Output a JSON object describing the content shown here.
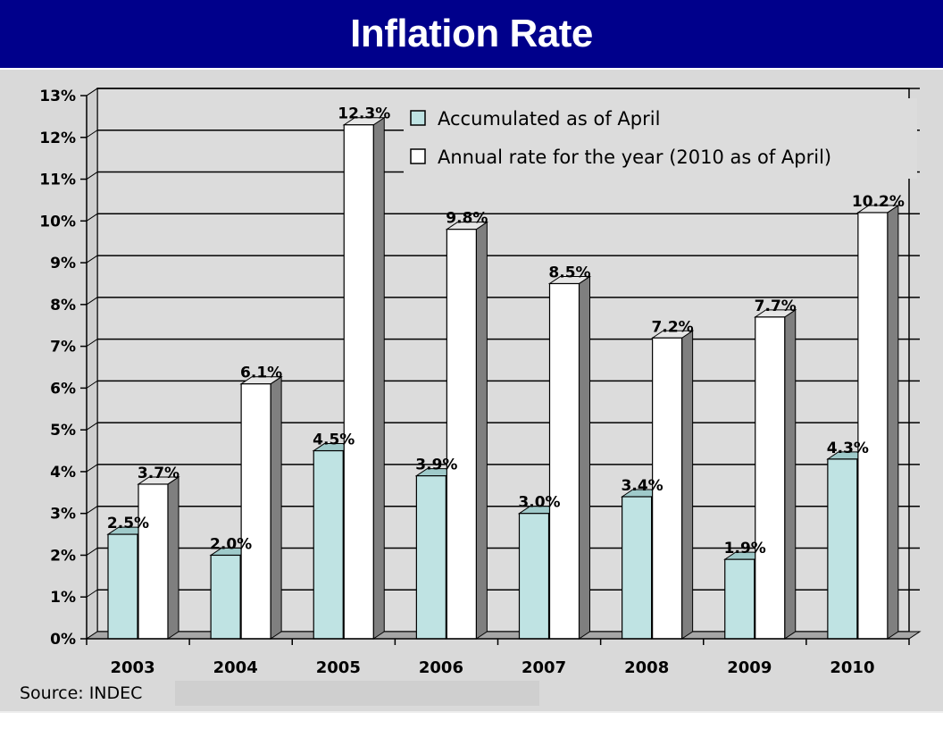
{
  "chart_data": {
    "type": "bar",
    "title": "Inflation Rate",
    "categories": [
      "2003",
      "2004",
      "2005",
      "2006",
      "2007",
      "2008",
      "2009",
      "2010"
    ],
    "series": [
      {
        "name": "Accumulated as of April",
        "values": [
          2.5,
          2.0,
          4.5,
          3.9,
          3.0,
          3.4,
          1.9,
          4.3
        ],
        "labels": [
          "2.5%",
          "2.0%",
          "4.5%",
          "3.9%",
          "3.0%",
          "3.4%",
          "1.9%",
          "4.3%"
        ],
        "color": "#bfe3e3"
      },
      {
        "name": "Annual rate for the year (2010 as of April)",
        "values": [
          3.7,
          6.1,
          12.3,
          9.8,
          8.5,
          7.2,
          7.7,
          10.2
        ],
        "labels": [
          "3.7%",
          "6.1%",
          "12.3%",
          "9.8%",
          "8.5%",
          "7.2%",
          "7.7%",
          "10.2%"
        ],
        "color": "#ffffff"
      }
    ],
    "ylim": [
      0,
      13
    ],
    "yticks": [
      "0%",
      "1%",
      "2%",
      "3%",
      "4%",
      "5%",
      "6%",
      "7%",
      "8%",
      "9%",
      "10%",
      "11%",
      "12%",
      "13%"
    ],
    "xlabel": "",
    "ylabel": "",
    "grid": true,
    "legend": "top-right"
  },
  "source": "Source: INDEC",
  "colors": {
    "title_bg": "#00008b",
    "panel_bg": "#d9d9d9",
    "bar_side": "#7f7f7f"
  }
}
